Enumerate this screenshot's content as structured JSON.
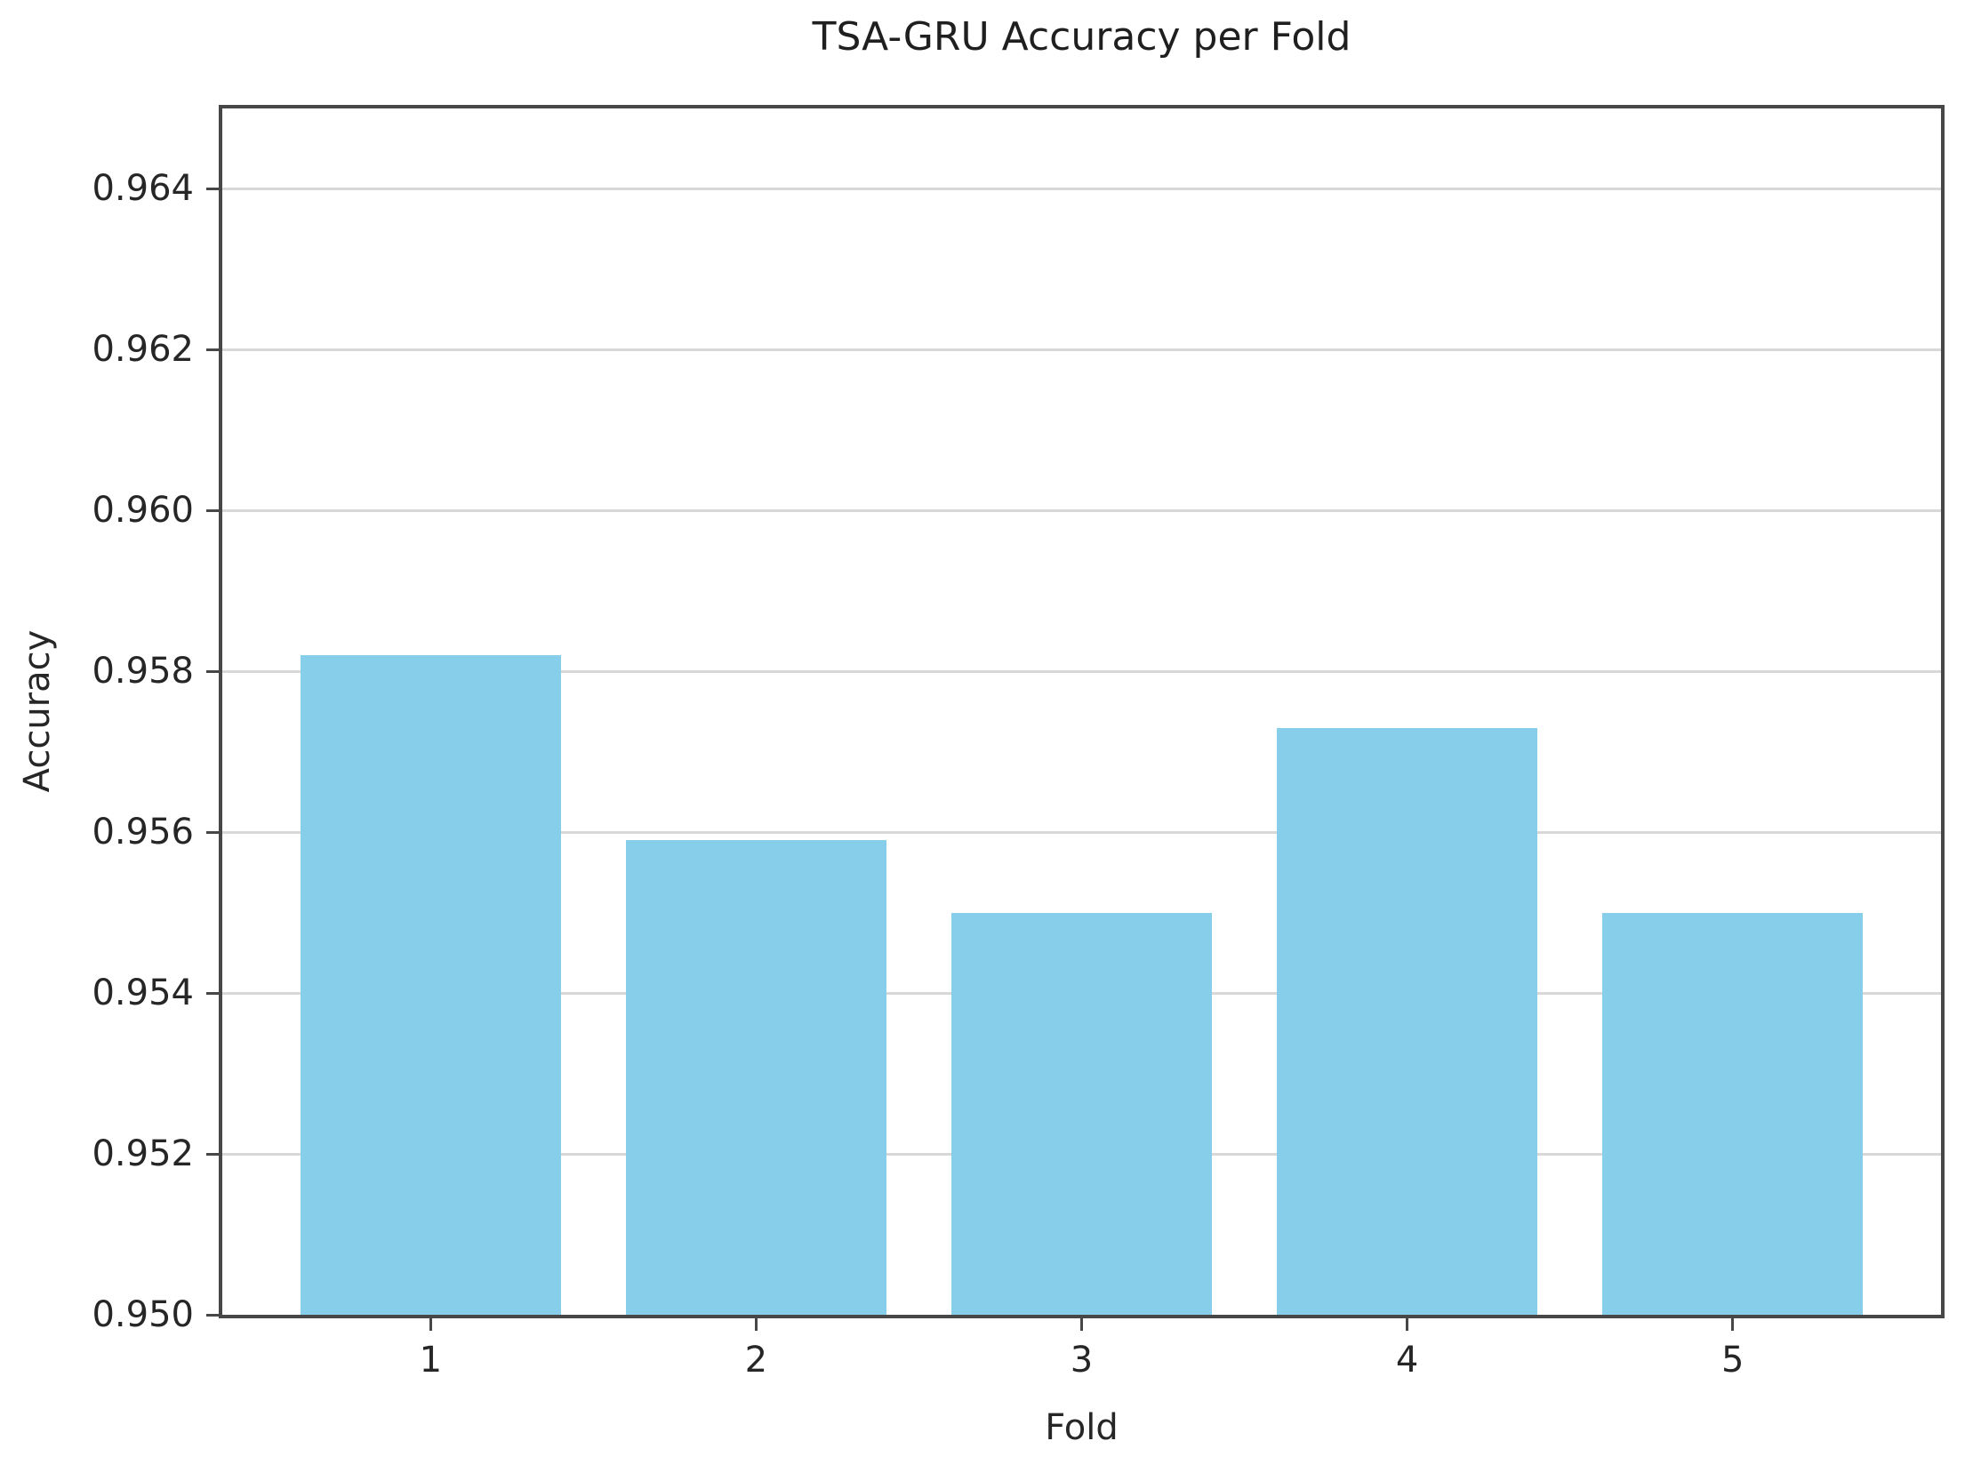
{
  "chart_data": {
    "type": "bar",
    "title": "TSA-GRU Accuracy per Fold",
    "xlabel": "Fold",
    "ylabel": "Accuracy",
    "categories": [
      "1",
      "2",
      "3",
      "4",
      "5"
    ],
    "values": [
      0.9582,
      0.9559,
      0.955,
      0.9573,
      0.955
    ],
    "ylim": [
      0.95,
      0.965
    ],
    "xlim": [
      0.36,
      5.64
    ],
    "yticks": [
      0.95,
      0.952,
      0.954,
      0.956,
      0.958,
      0.96,
      0.962,
      0.964
    ],
    "ytick_labels": [
      "0.950",
      "0.952",
      "0.954",
      "0.956",
      "0.958",
      "0.960",
      "0.962",
      "0.964"
    ],
    "bar_width_ratio": 0.8,
    "grid": true,
    "legend": null,
    "colors": {
      "bar": "#87CEEB",
      "grid": "#d8d8d8",
      "spine": "#474747",
      "text": "#262626",
      "background": "#ffffff"
    }
  }
}
